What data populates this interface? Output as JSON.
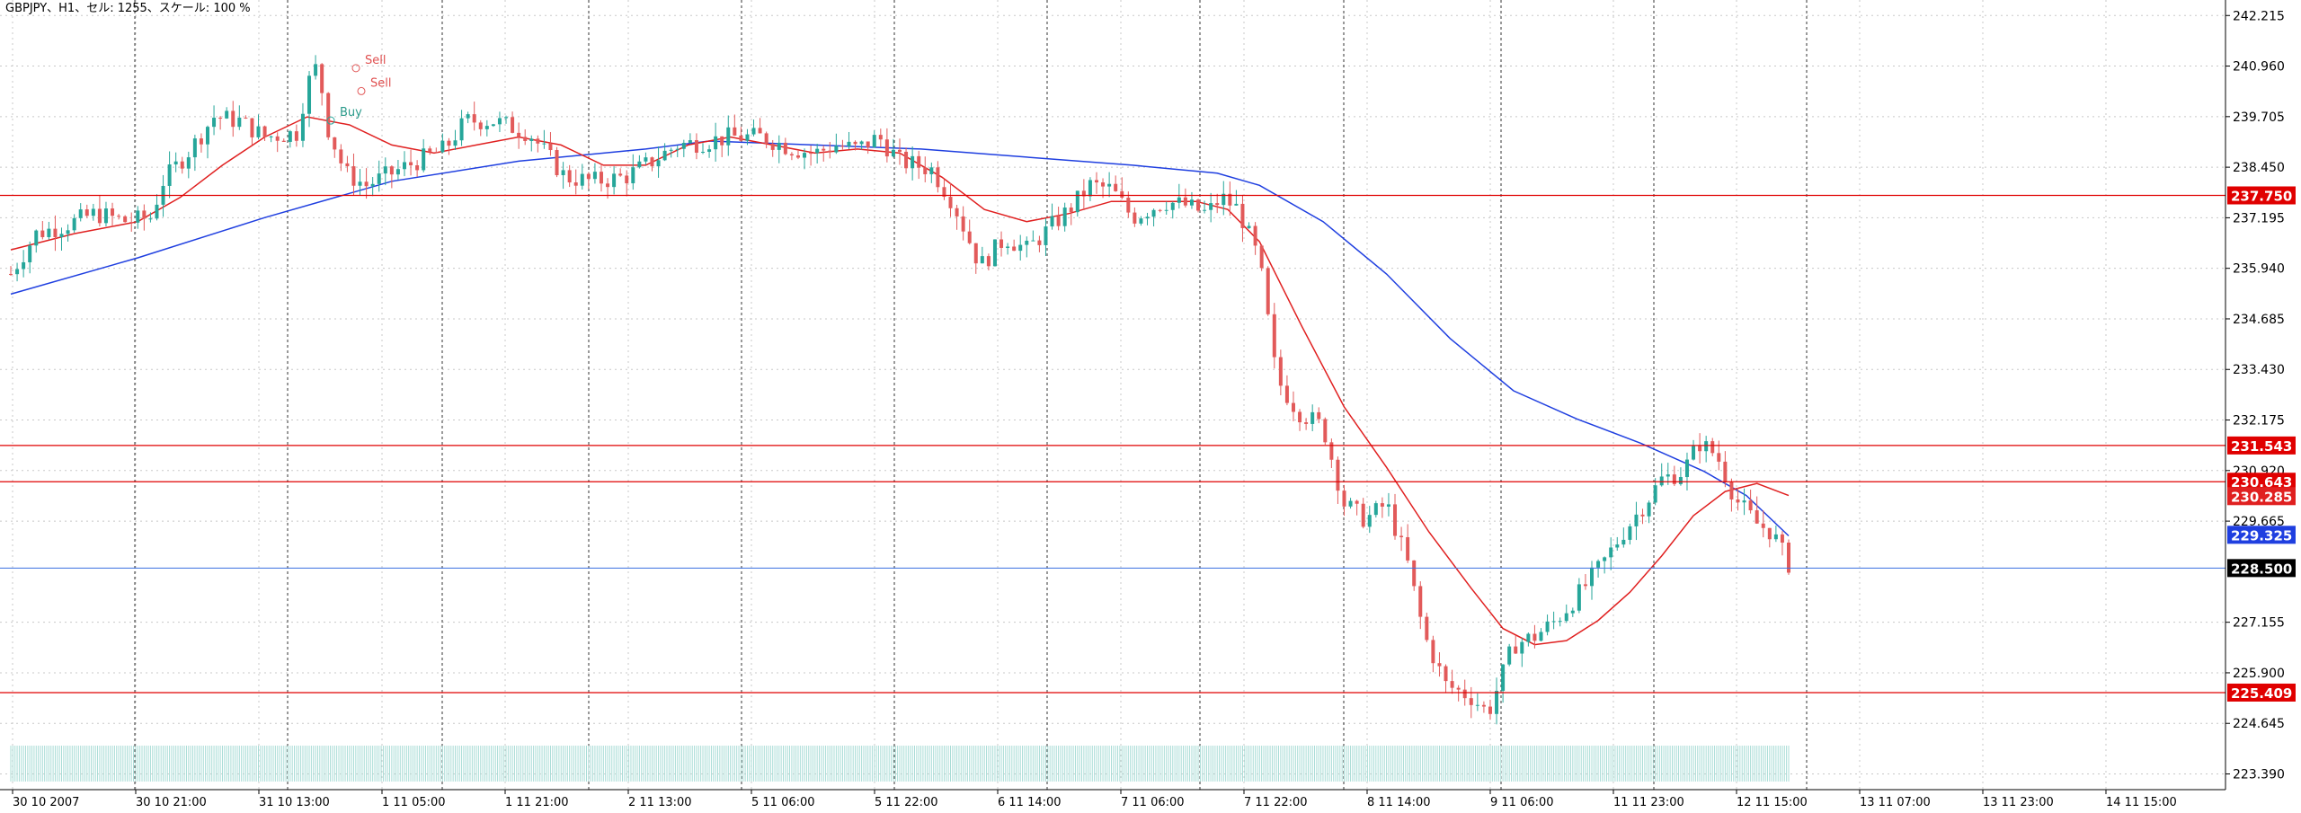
{
  "header": {
    "title": "GBPJPY、H1、セル: 1255、スケール: 100 %"
  },
  "colors": {
    "background": "#ffffff",
    "grid": "#c8c8c8",
    "bull": "#26a69a",
    "bear": "#e25a5a",
    "ma_fast": "#e02020",
    "ma_slow": "#1f3fe0",
    "hline": "#e00000",
    "current_price": "#3a6fe0",
    "volume": "#a8dcd6"
  },
  "chart_data": {
    "type": "candlestick",
    "symbol": "GBPJPY",
    "timeframe": "H1",
    "ylim": [
      223.0,
      242.6
    ],
    "y_ticks": [
      "242.215",
      "240.960",
      "239.705",
      "238.450",
      "237.195",
      "235.940",
      "234.685",
      "233.430",
      "232.175",
      "230.920",
      "229.665",
      "227.155",
      "225.900",
      "224.645",
      "223.390"
    ],
    "x_ticks": [
      "30 10 2007",
      "30 10 21:00",
      "31 10 13:00",
      "1 11 05:00",
      "1 11 21:00",
      "2 11 13:00",
      "5 11 06:00",
      "5 11 22:00",
      "6 11 14:00",
      "7 11 06:00",
      "7 11 22:00",
      "8 11 14:00",
      "9 11 06:00",
      "11 11 23:00",
      "12 11 15:00",
      "13 11 07:00",
      "13 11 23:00",
      "14 11 15:00"
    ],
    "horizontal_levels": [
      {
        "value": 237.75,
        "label": "237.750"
      },
      {
        "value": 231.543,
        "label": "231.543"
      },
      {
        "value": 230.643,
        "label": "230.643"
      },
      {
        "value": 225.409,
        "label": "225.409"
      }
    ],
    "current_price": {
      "value": 228.5,
      "label": "228.500"
    },
    "ma_labels": [
      {
        "value": 230.285,
        "label": "230.285"
      },
      {
        "value": 229.325,
        "label": "229.325"
      }
    ],
    "trade_markers": [
      {
        "label": "Sell",
        "price": 241.02
      },
      {
        "label": "Sell",
        "price": 240.45
      },
      {
        "label": "Buy",
        "price": 239.72
      }
    ],
    "price_path": [
      [
        0,
        235.8
      ],
      [
        12,
        236.8
      ],
      [
        25,
        237.0
      ],
      [
        40,
        237.3
      ],
      [
        55,
        237.1
      ],
      [
        66,
        237.2
      ],
      [
        72,
        238.1
      ],
      [
        85,
        238.9
      ],
      [
        96,
        239.7
      ],
      [
        108,
        239.6
      ],
      [
        120,
        239.2
      ],
      [
        135,
        239.3
      ],
      [
        140,
        240.5
      ],
      [
        145,
        241.0
      ],
      [
        150,
        239.4
      ],
      [
        158,
        238.3
      ],
      [
        168,
        238.0
      ],
      [
        180,
        238.3
      ],
      [
        192,
        238.6
      ],
      [
        205,
        238.9
      ],
      [
        215,
        239.6
      ],
      [
        228,
        239.6
      ],
      [
        245,
        239.3
      ],
      [
        262,
        238.2
      ],
      [
        275,
        238.1
      ],
      [
        290,
        238.2
      ],
      [
        300,
        238.5
      ],
      [
        315,
        239.0
      ],
      [
        330,
        239.1
      ],
      [
        340,
        239.2
      ],
      [
        355,
        239.2
      ],
      [
        370,
        238.9
      ],
      [
        380,
        238.8
      ],
      [
        390,
        239.0
      ],
      [
        400,
        238.9
      ],
      [
        410,
        239.2
      ],
      [
        420,
        238.6
      ],
      [
        435,
        238.4
      ],
      [
        445,
        237.6
      ],
      [
        458,
        236.0
      ],
      [
        470,
        236.7
      ],
      [
        480,
        236.4
      ],
      [
        490,
        236.9
      ],
      [
        500,
        237.4
      ],
      [
        510,
        238.0
      ],
      [
        520,
        237.9
      ],
      [
        530,
        237.2
      ],
      [
        545,
        237.6
      ],
      [
        555,
        237.5
      ],
      [
        565,
        237.3
      ],
      [
        572,
        237.7
      ],
      [
        580,
        237.4
      ],
      [
        590,
        236.1
      ],
      [
        598,
        233.2
      ],
      [
        608,
        232.4
      ],
      [
        620,
        232.0
      ],
      [
        630,
        230.1
      ],
      [
        640,
        229.7
      ],
      [
        650,
        230.1
      ],
      [
        660,
        228.6
      ],
      [
        668,
        226.8
      ],
      [
        678,
        225.6
      ],
      [
        690,
        225.3
      ],
      [
        698,
        224.9
      ],
      [
        710,
        226.6
      ],
      [
        720,
        226.8
      ],
      [
        730,
        227.2
      ],
      [
        740,
        227.8
      ],
      [
        752,
        228.6
      ],
      [
        762,
        229.4
      ],
      [
        772,
        230.1
      ],
      [
        780,
        230.7
      ],
      [
        790,
        230.9
      ],
      [
        798,
        231.6
      ],
      [
        806,
        231.3
      ],
      [
        815,
        230.2
      ],
      [
        825,
        229.6
      ],
      [
        832,
        229.4
      ],
      [
        840,
        228.6
      ]
    ],
    "ma_fast_path": [
      [
        0,
        236.4
      ],
      [
        30,
        236.8
      ],
      [
        60,
        237.1
      ],
      [
        80,
        237.7
      ],
      [
        100,
        238.5
      ],
      [
        120,
        239.2
      ],
      [
        140,
        239.7
      ],
      [
        160,
        239.5
      ],
      [
        180,
        239.0
      ],
      [
        200,
        238.8
      ],
      [
        220,
        239.0
      ],
      [
        240,
        239.2
      ],
      [
        260,
        239.0
      ],
      [
        280,
        238.5
      ],
      [
        300,
        238.5
      ],
      [
        320,
        239.0
      ],
      [
        340,
        239.2
      ],
      [
        360,
        239.0
      ],
      [
        380,
        238.8
      ],
      [
        400,
        238.9
      ],
      [
        420,
        238.8
      ],
      [
        440,
        238.2
      ],
      [
        460,
        237.4
      ],
      [
        480,
        237.1
      ],
      [
        500,
        237.3
      ],
      [
        520,
        237.6
      ],
      [
        540,
        237.6
      ],
      [
        560,
        237.6
      ],
      [
        575,
        237.4
      ],
      [
        590,
        236.6
      ],
      [
        610,
        234.5
      ],
      [
        630,
        232.5
      ],
      [
        650,
        231.0
      ],
      [
        670,
        229.4
      ],
      [
        690,
        228.0
      ],
      [
        705,
        227.0
      ],
      [
        720,
        226.6
      ],
      [
        735,
        226.7
      ],
      [
        750,
        227.2
      ],
      [
        765,
        227.9
      ],
      [
        780,
        228.8
      ],
      [
        795,
        229.8
      ],
      [
        810,
        230.4
      ],
      [
        825,
        230.6
      ],
      [
        840,
        230.3
      ]
    ],
    "ma_slow_path": [
      [
        0,
        235.3
      ],
      [
        60,
        236.2
      ],
      [
        120,
        237.2
      ],
      [
        180,
        238.1
      ],
      [
        240,
        238.6
      ],
      [
        300,
        238.9
      ],
      [
        330,
        239.1
      ],
      [
        380,
        239.0
      ],
      [
        430,
        238.9
      ],
      [
        480,
        238.7
      ],
      [
        530,
        238.5
      ],
      [
        570,
        238.3
      ],
      [
        590,
        238.0
      ],
      [
        620,
        237.1
      ],
      [
        650,
        235.8
      ],
      [
        680,
        234.2
      ],
      [
        710,
        232.9
      ],
      [
        740,
        232.2
      ],
      [
        770,
        231.6
      ],
      [
        800,
        230.9
      ],
      [
        820,
        230.3
      ],
      [
        840,
        229.3
      ]
    ]
  }
}
